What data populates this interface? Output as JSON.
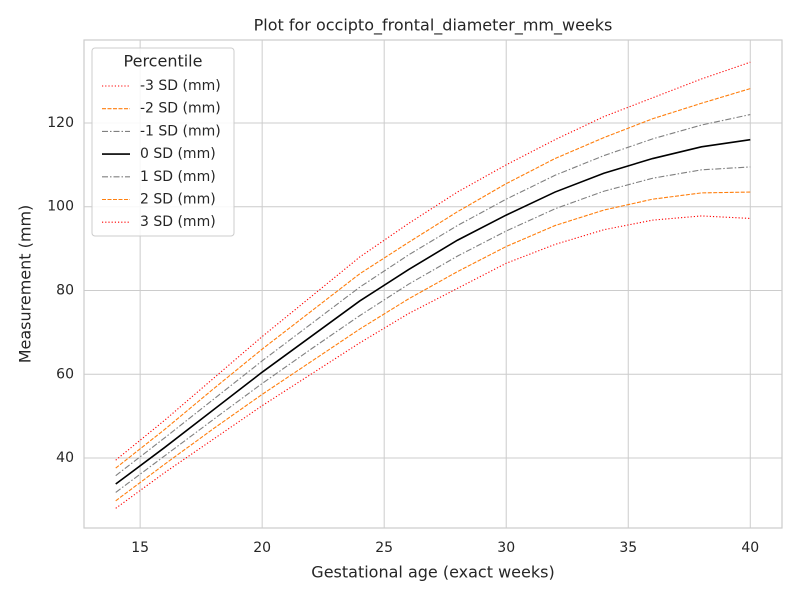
{
  "chart_data": {
    "type": "line",
    "title": "Plot for occipto_frontal_diameter_mm_weeks",
    "xlabel": "Gestational age (exact weeks)",
    "ylabel": "Measurement (mm)",
    "legend_title": "Percentile",
    "legend": "upper left",
    "grid": true,
    "x": [
      14,
      16,
      18,
      20,
      22,
      24,
      26,
      28,
      30,
      32,
      34,
      36,
      38,
      40
    ],
    "xlim": [
      12.7,
      41.3
    ],
    "xticks": [
      15,
      20,
      25,
      30,
      35,
      40
    ],
    "ylim": [
      23.3,
      139.8
    ],
    "yticks": [
      40,
      60,
      80,
      100,
      120
    ],
    "series": [
      {
        "name": "-3 SD (mm)",
        "color": "#ff0000",
        "dash": "1.2,2",
        "values": [
          28,
          36.5,
          44.5,
          52.5,
          60,
          67.5,
          74.5,
          80.5,
          86.5,
          91,
          94.5,
          96.8,
          97.8,
          97.2
        ]
      },
      {
        "name": "-2 SD (mm)",
        "color": "#ff7f0e",
        "dash": "4,1.5",
        "values": [
          29.8,
          38.5,
          47,
          55.2,
          63,
          70.8,
          78,
          84.5,
          90.5,
          95.5,
          99.2,
          101.8,
          103.3,
          103.5
        ]
      },
      {
        "name": "-1 SD (mm)",
        "color": "#808080",
        "dash": "6,2,1.5,2",
        "values": [
          31.8,
          40.5,
          49.2,
          57.8,
          66,
          74,
          81.5,
          88.2,
          94.2,
          99.5,
          103.7,
          106.8,
          108.8,
          109.5
        ]
      },
      {
        "name": "0 SD (mm)",
        "color": "#000000",
        "dash": "none",
        "values": [
          33.8,
          42.5,
          51.5,
          60.5,
          69,
          77.5,
          85,
          92,
          98,
          103.5,
          108,
          111.5,
          114.3,
          116
        ]
      },
      {
        "name": "1 SD (mm)",
        "color": "#808080",
        "dash": "6,2,1.5,2",
        "values": [
          35.8,
          44.8,
          54,
          63.2,
          72,
          80.8,
          88.5,
          95.5,
          101.8,
          107.5,
          112.2,
          116.2,
          119.5,
          122
        ]
      },
      {
        "name": "2 SD (mm)",
        "color": "#ff7f0e",
        "dash": "4,1.5",
        "values": [
          37.6,
          46.8,
          56.5,
          66,
          75,
          84,
          91.5,
          98.8,
          105.5,
          111.5,
          116.5,
          121,
          124.7,
          128.2
        ]
      },
      {
        "name": "3 SD (mm)",
        "color": "#ff0000",
        "dash": "1.2,2",
        "values": [
          39.5,
          49,
          59,
          69,
          78.5,
          88,
          96,
          103.5,
          110,
          116,
          121.5,
          126,
          130.5,
          134.5
        ]
      }
    ]
  }
}
